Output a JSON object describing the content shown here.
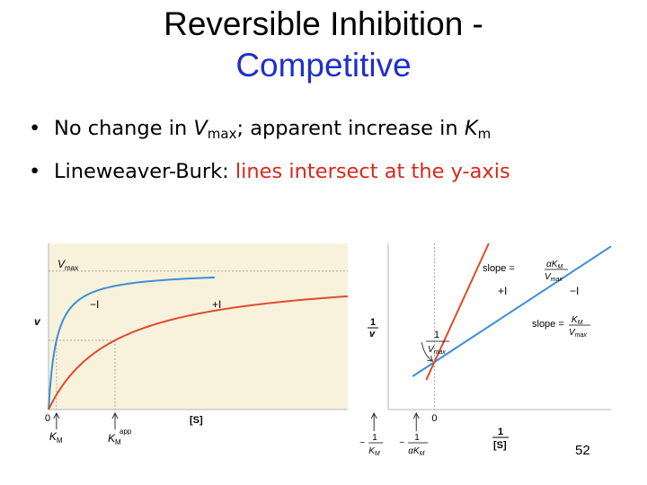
{
  "slide": {
    "title_line1": "Reversible Inhibition -",
    "title_line2": "Competitive",
    "bullet1": {
      "a": "No change in ",
      "b": "V",
      "c": "max",
      "d": "; apparent increase in ",
      "e": "K",
      "f": "m"
    },
    "bullet2": {
      "a": "Lineweaver-Burk: ",
      "b": "lines intersect at the y-axis"
    },
    "page_number": "52"
  },
  "colors": {
    "title_accent": "#1f2fc9",
    "highlight": "#d8281c",
    "no_inhibitor": "#3b8fd6",
    "inhibitor": "#e0492a",
    "plot_bg": "#f8f2dc"
  },
  "chart_data": [
    {
      "type": "line",
      "ylabel": "v",
      "xlabel": "[S]",
      "x_origin_label": "0",
      "vmax_label": {
        "v": "V",
        "sub": "max"
      },
      "km_label": {
        "k": "K",
        "sub": "M"
      },
      "km_app_label": {
        "k": "K",
        "sub": "M",
        "sup": "app"
      },
      "vmax": 1,
      "km": 0.12,
      "km_app": 1.0,
      "xlim": [
        0,
        4.5
      ],
      "ylim": [
        0,
        1.2
      ],
      "series": [
        {
          "name": "−I",
          "x_max": 2.5
        },
        {
          "name": "+I",
          "x_max": 4.5
        }
      ]
    },
    {
      "type": "line",
      "ylabel": {
        "num": "1",
        "den": "v"
      },
      "xlabel": {
        "num": "1",
        "den": "[S]"
      },
      "x_origin_label": "0",
      "xlim": [
        -1.7,
        6.5
      ],
      "ylim": [
        -0.2,
        4.0
      ],
      "intercept": 1,
      "intercept_label": {
        "num": "1",
        "den": "V",
        "sub": "max"
      },
      "x_tick_km": {
        "num": "1",
        "minus": "−",
        "den": "K",
        "sub": "M"
      },
      "x_tick_akm": {
        "num": "1",
        "minus": "−",
        "alpha": "α",
        "den": "K",
        "sub": "M"
      },
      "series": [
        {
          "name": "−I",
          "slope": 0.45,
          "x_min": -0.8,
          "slope_label": {
            "prefix": "slope =",
            "num_k": "K",
            "num_sub": "M",
            "den_v": "V",
            "den_sub": "max"
          }
        },
        {
          "name": "+I",
          "slope": 1.5,
          "x_min": -0.3,
          "slope_label": {
            "prefix": "slope =",
            "num_a": "α",
            "num_k": "K",
            "num_sub": "M",
            "den_v": "V",
            "den_sub": "max"
          }
        }
      ]
    }
  ]
}
